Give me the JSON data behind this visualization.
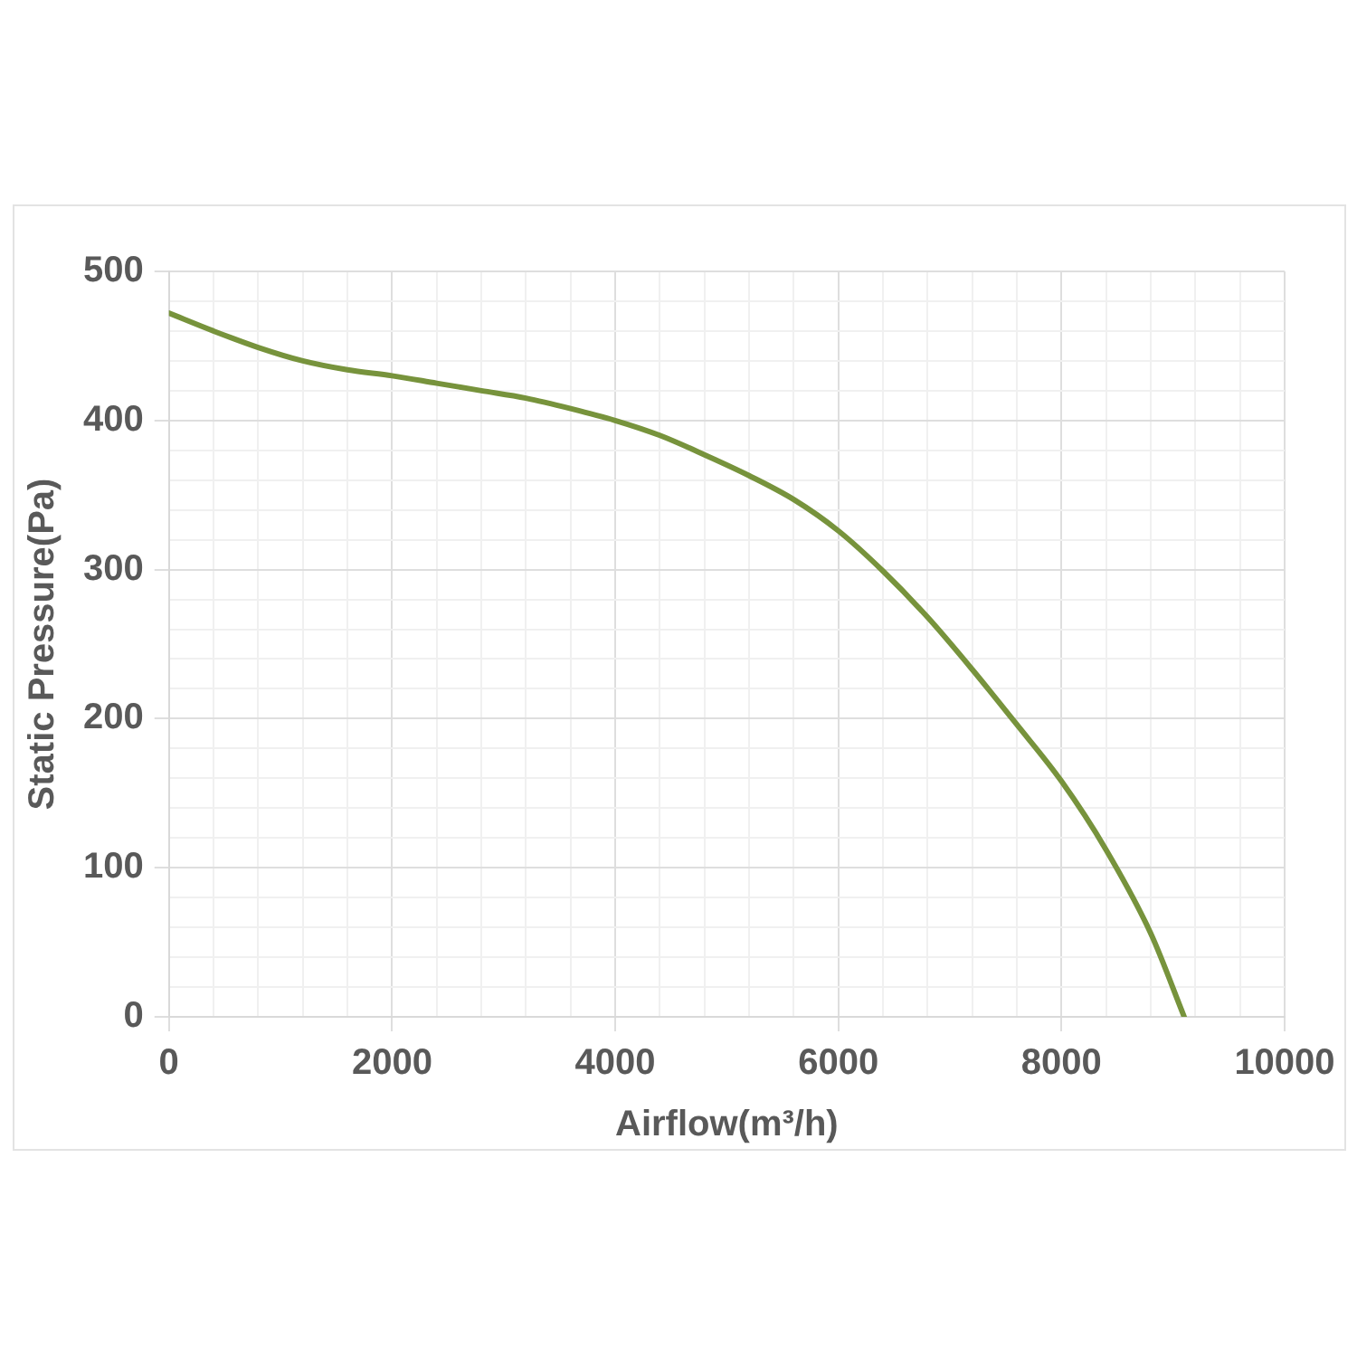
{
  "chart_data": {
    "type": "line",
    "xlabel": "Airflow(m³/h)",
    "ylabel": "Static Pressure(Pa)",
    "series": [
      {
        "color": "#77933c",
        "x": [
          0,
          400,
          800,
          1200,
          1600,
          2000,
          2400,
          2800,
          3200,
          3600,
          4000,
          4400,
          4800,
          5200,
          5600,
          6000,
          6400,
          6800,
          7200,
          7600,
          8000,
          8400,
          8800,
          9100
        ],
        "values": [
          472,
          460,
          449,
          440,
          434,
          430,
          425,
          420,
          415,
          408,
          400,
          390,
          377,
          363,
          347,
          326,
          299,
          268,
          233,
          196,
          158,
          112,
          56,
          0
        ]
      }
    ],
    "xlim": [
      0,
      10000
    ],
    "xticks": [
      0,
      {
        "value": 400,
        "label": null
      },
      {
        "value": 800,
        "label": null
      },
      {
        "value": 1200,
        "label": null
      },
      {
        "value": 1600,
        "label": null
      },
      2000,
      {
        "value": 2400,
        "label": null
      },
      {
        "value": 2800,
        "label": null
      },
      {
        "value": 3200,
        "label": null
      },
      {
        "value": 3600,
        "label": null
      },
      4000,
      {
        "value": 4400,
        "label": null
      },
      {
        "value": 4800,
        "label": null
      },
      {
        "value": 5200,
        "label": null
      },
      {
        "value": 5600,
        "label": null
      },
      6000,
      {
        "value": 6400,
        "label": null
      },
      {
        "value": 6800,
        "label": null
      },
      {
        "value": 7200,
        "label": null
      },
      {
        "value": 7600,
        "label": null
      },
      8000,
      {
        "value": 8400,
        "label": null
      },
      {
        "value": 8800,
        "label": null
      },
      {
        "value": 9200,
        "label": null
      },
      {
        "value": 9600,
        "label": null
      },
      10000
    ],
    "ylim": [
      0,
      500
    ],
    "yticks": [
      0,
      {
        "value": 20,
        "label": null
      },
      {
        "value": 40,
        "label": null
      },
      {
        "value": 60,
        "label": null
      },
      {
        "value": 80,
        "label": null
      },
      100,
      {
        "value": 120,
        "label": null
      },
      {
        "value": 140,
        "label": null
      },
      {
        "value": 160,
        "label": null
      },
      {
        "value": 180,
        "label": null
      },
      200,
      {
        "value": 220,
        "label": null
      },
      {
        "value": 240,
        "label": null
      },
      {
        "value": 260,
        "label": null
      },
      {
        "value": 280,
        "label": null
      },
      300,
      {
        "value": 320,
        "label": null
      },
      {
        "value": 340,
        "label": null
      },
      {
        "value": 360,
        "label": null
      },
      {
        "value": 380,
        "label": null
      },
      400,
      {
        "value": 420,
        "label": null
      },
      {
        "value": 440,
        "label": null
      },
      {
        "value": 460,
        "label": null
      },
      {
        "value": 480,
        "label": null
      },
      500
    ],
    "grid": true,
    "marker": "none"
  }
}
